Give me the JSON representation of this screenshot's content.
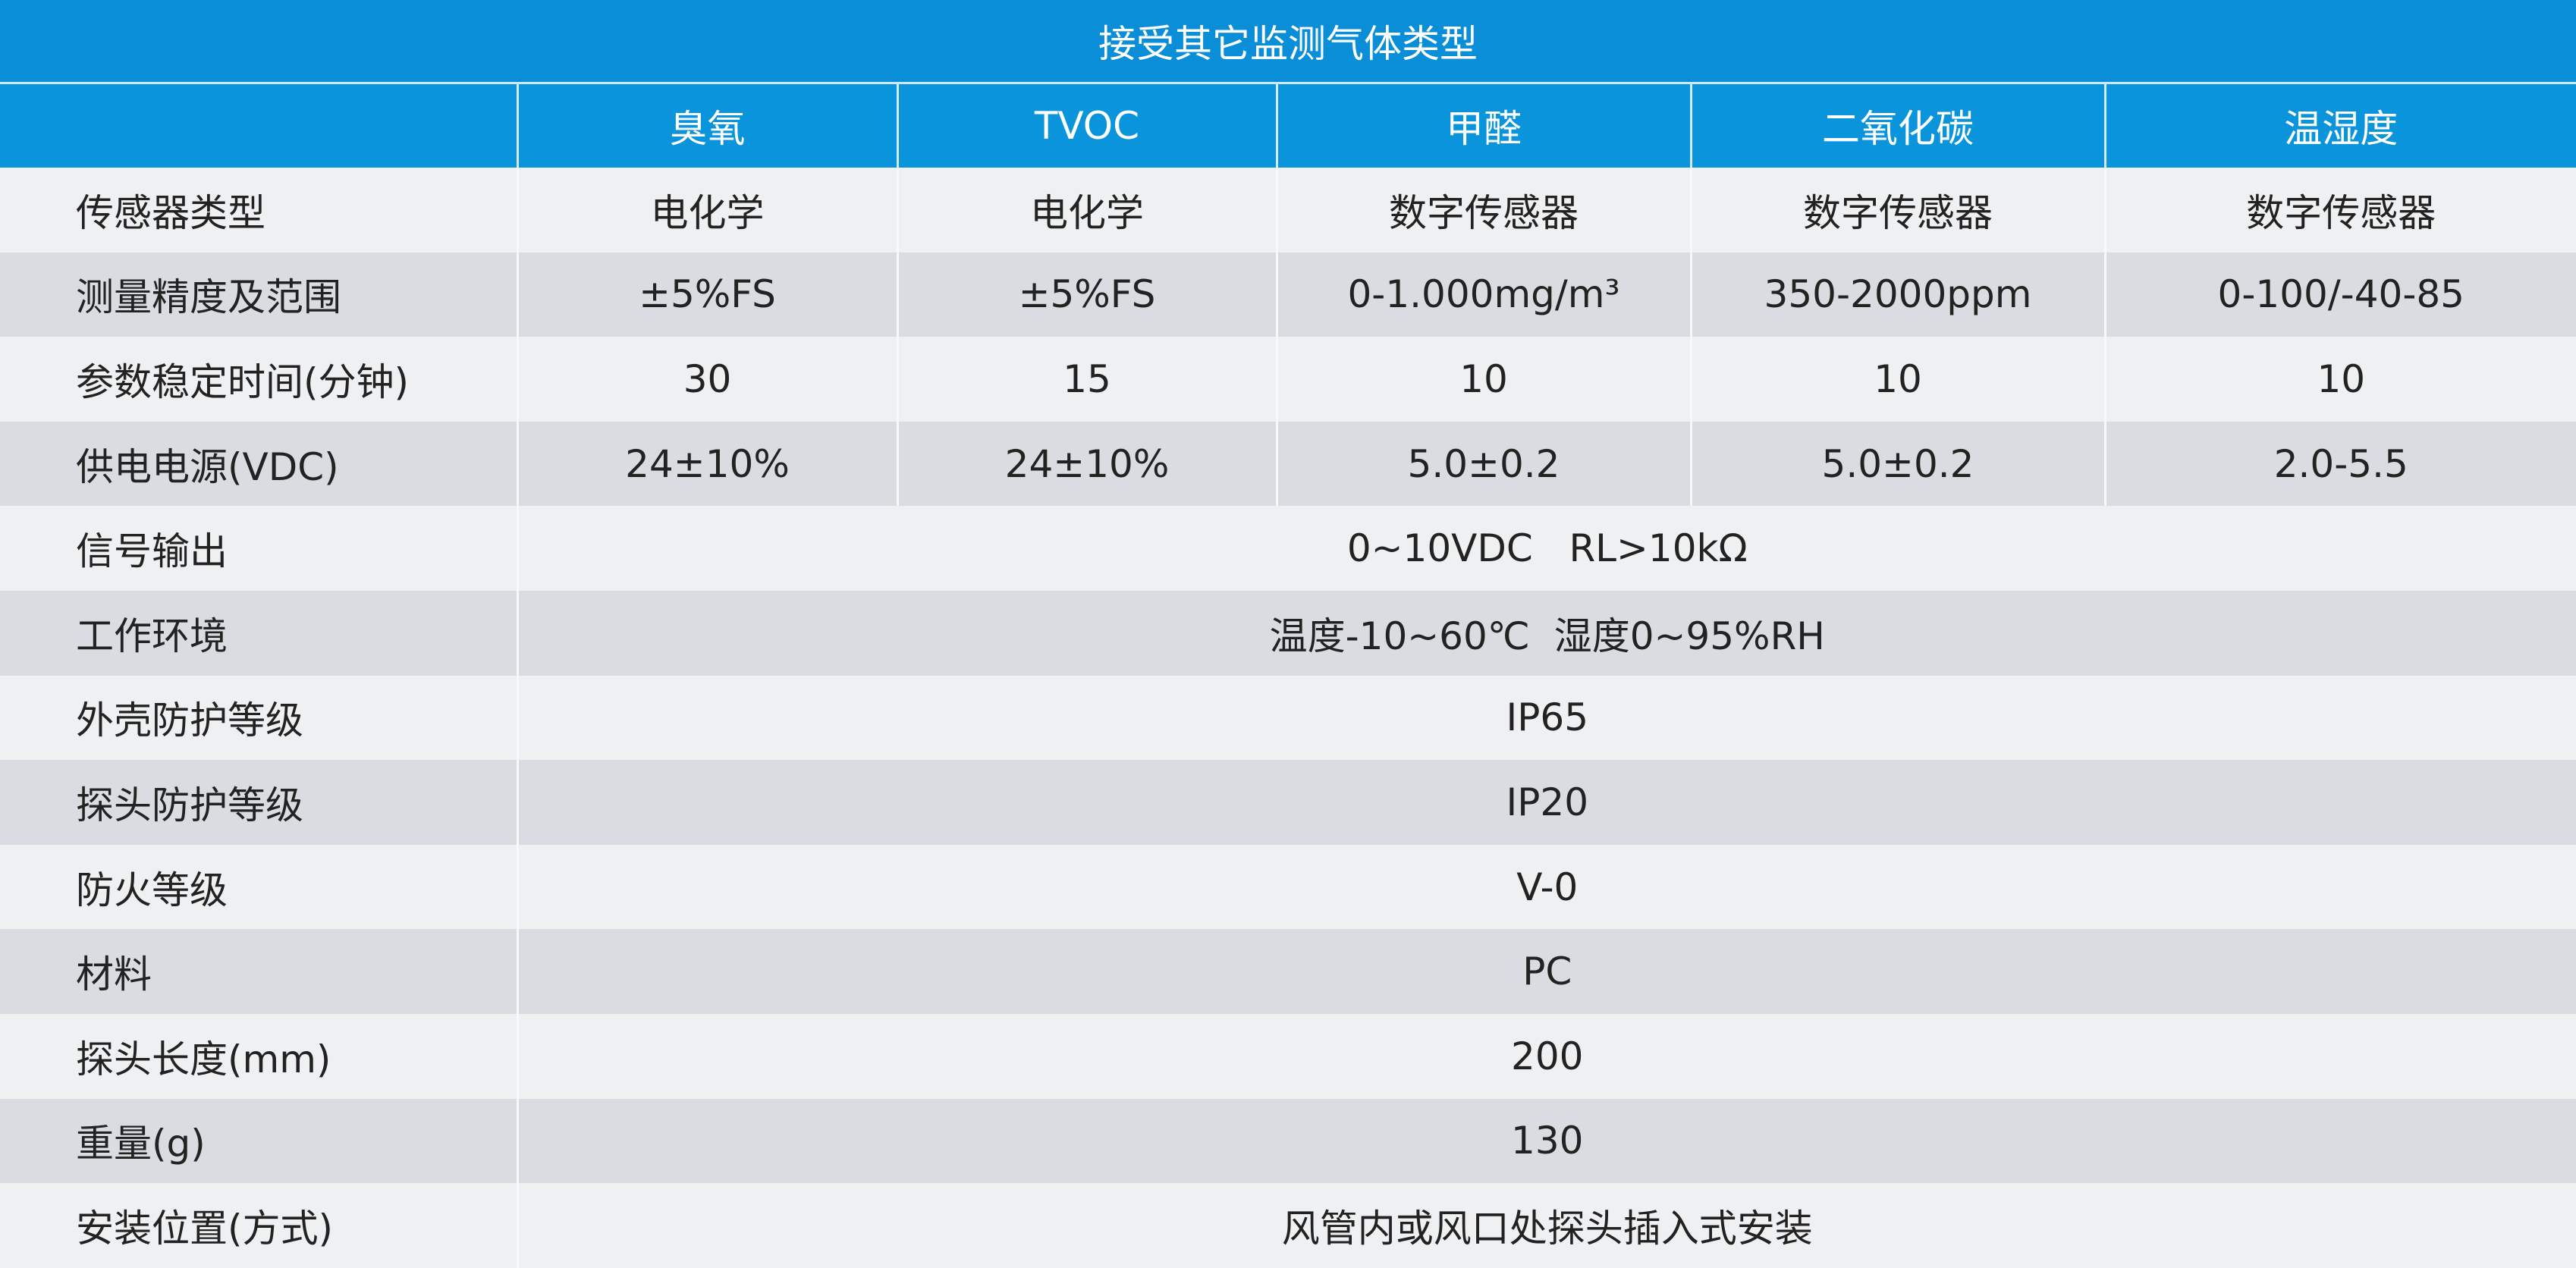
{
  "table": {
    "title": "接受其它监测气体类型",
    "columns": [
      "臭氧",
      "TVOC",
      "甲醛",
      "二氧化碳",
      "温湿度"
    ],
    "rows": [
      {
        "label": "传感器类型",
        "values": [
          "电化学",
          "电化学",
          "数字传感器",
          "数字传感器",
          "数字传感器"
        ]
      },
      {
        "label": "测量精度及范围",
        "values": [
          "±5%FS",
          "±5%FS",
          "0-1.000mg/m³",
          "350-2000ppm",
          "0-100/-40-85"
        ]
      },
      {
        "label": "参数稳定时间(分钟)",
        "values": [
          "30",
          "15",
          "10",
          "10",
          "10"
        ]
      },
      {
        "label": "供电电源(VDC)",
        "values": [
          "24±10%",
          "24±10%",
          "5.0±0.2",
          "5.0±0.2",
          "2.0-5.5"
        ]
      },
      {
        "label": "信号输出",
        "values": [
          "0~10VDC   RL>10kΩ"
        ]
      },
      {
        "label": "工作环境",
        "values": [
          "温度-10~60℃  湿度0~95%RH"
        ]
      },
      {
        "label": "外壳防护等级",
        "values": [
          "IP65"
        ]
      },
      {
        "label": "探头防护等级",
        "values": [
          "IP20"
        ]
      },
      {
        "label": "防火等级",
        "values": [
          "V-0"
        ]
      },
      {
        "label": "材料",
        "values": [
          "PC"
        ]
      },
      {
        "label": "探头长度(mm)",
        "values": [
          "200"
        ]
      },
      {
        "label": "重量(g)",
        "values": [
          "130"
        ]
      },
      {
        "label": "安装位置(方式)",
        "values": [
          "风管内或风口处探头插入式安装"
        ]
      }
    ]
  }
}
